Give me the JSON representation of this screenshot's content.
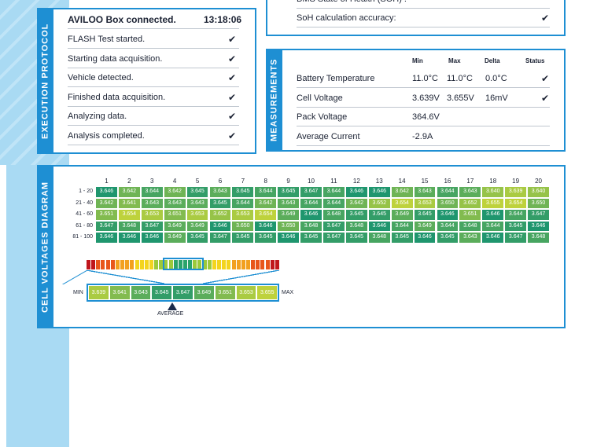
{
  "execution_protocol": {
    "title": "EXECUTION PROTOCOL",
    "header": {
      "text": "AVILOO Box connected.",
      "time": "13:18:06"
    },
    "steps": [
      "FLASH Test started.",
      "Starting data acquisition.",
      "Vehicle detected.",
      "Finished data acquisition.",
      "Analyzing data.",
      "Analysis completed."
    ]
  },
  "soh": {
    "rows": [
      "BMS State of Health (SOH) :",
      "SoH calculation accuracy:"
    ]
  },
  "measurements": {
    "title": "MEASUREMENTS",
    "columns": [
      "Min",
      "Max",
      "Delta",
      "Status"
    ],
    "rows": [
      {
        "label": "Battery Temperature",
        "min": "11.0°C",
        "max": "11.0°C",
        "delta": "0.0°C",
        "status": true
      },
      {
        "label": "Cell Voltage",
        "min": "3.639V",
        "max": "3.655V",
        "delta": "16mV",
        "status": true
      },
      {
        "label": "Pack Voltage",
        "min": "364.6V"
      },
      {
        "label": "Average Current",
        "min": "-2.9A"
      }
    ]
  },
  "cell_voltages": {
    "title": "CELL VOLTAGES DIAGRAM",
    "columns": [
      "1",
      "2",
      "3",
      "4",
      "5",
      "6",
      "7",
      "8",
      "9",
      "10",
      "11",
      "12",
      "13",
      "14",
      "15",
      "16",
      "17",
      "18",
      "19",
      "20"
    ],
    "row_labels": [
      "1 - 20",
      "21 - 40",
      "41 - 60",
      "61 - 80",
      "81 - 100"
    ],
    "values": [
      [
        "3.646",
        "3.642",
        "3.644",
        "3.642",
        "3.645",
        "3.643",
        "3.645",
        "3.644",
        "3.645",
        "3.647",
        "3.644",
        "3.646",
        "3.646",
        "3.642",
        "3.643",
        "3.644",
        "3.643",
        "3.640",
        "3.639",
        "3.640"
      ],
      [
        "3.642",
        "3.641",
        "3.643",
        "3.643",
        "3.643",
        "3.645",
        "3.644",
        "3.642",
        "3.643",
        "3.644",
        "3.644",
        "3.642",
        "3.652",
        "3.654",
        "3.653",
        "3.650",
        "3.652",
        "3.655",
        "3.654",
        "3.650"
      ],
      [
        "3.651",
        "3.654",
        "3.653",
        "3.651",
        "3.653",
        "3.652",
        "3.653",
        "3.654",
        "3.649",
        "3.646",
        "3.648",
        "3.645",
        "3.645",
        "3.649",
        "3.645",
        "3.646",
        "3.651",
        "3.646",
        "3.644",
        "3.647"
      ],
      [
        "3.647",
        "3.648",
        "3.647",
        "3.649",
        "3.649",
        "3.646",
        "3.650",
        "3.646",
        "3.650",
        "3.648",
        "3.647",
        "3.648",
        "3.646",
        "3.644",
        "3.649",
        "3.644",
        "3.648",
        "3.644",
        "3.645",
        "3.646"
      ],
      [
        "3.646",
        "3.646",
        "3.646",
        "3.649",
        "3.645",
        "3.647",
        "3.645",
        "3.645",
        "3.646",
        "3.645",
        "3.647",
        "3.645",
        "3.648",
        "3.645",
        "3.646",
        "3.645",
        "3.643",
        "3.646",
        "3.647",
        "3.648"
      ]
    ],
    "scale": {
      "min_label": "MIN",
      "max_label": "MAX",
      "average_label": "AVERAGE",
      "ticks": [
        "3.639",
        "3.641",
        "3.643",
        "3.645",
        "3.647",
        "3.649",
        "3.651",
        "3.653",
        "3.655"
      ]
    }
  }
}
